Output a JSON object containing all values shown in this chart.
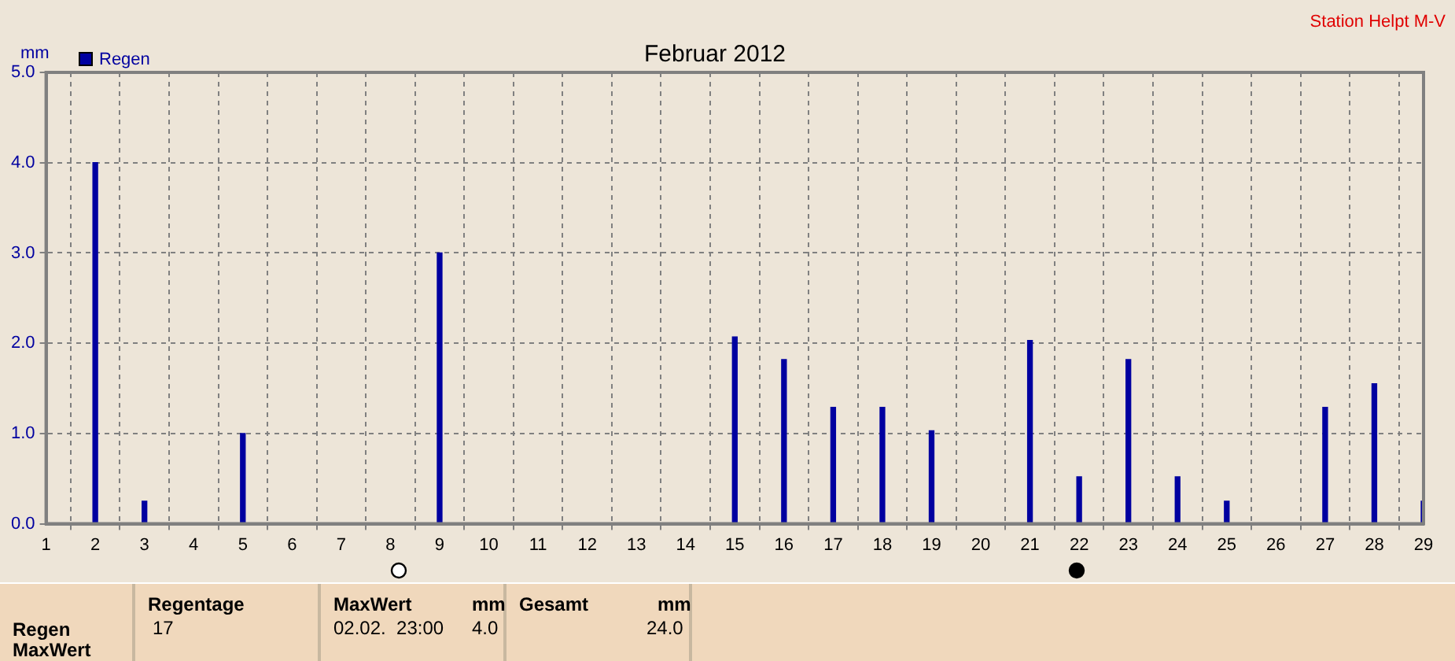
{
  "chart_data": {
    "type": "bar",
    "title": "Februar 2012",
    "subtitle": "Station Helpt M-V",
    "ylabel": "mm",
    "x": [
      2,
      3,
      5,
      9,
      15,
      16,
      17,
      18,
      19,
      21,
      22,
      23,
      24,
      25,
      27,
      28,
      29
    ],
    "series": [
      {
        "name": "Regen",
        "color": "#0000a0",
        "values": [
          4.0,
          0.25,
          1.0,
          3.0,
          2.07,
          1.82,
          1.29,
          1.29,
          1.03,
          2.03,
          0.52,
          1.82,
          0.52,
          0.25,
          1.29,
          1.55,
          0.25
        ]
      }
    ],
    "xlim": [
      1,
      29
    ],
    "xticks": [
      1,
      2,
      3,
      4,
      5,
      6,
      7,
      8,
      9,
      10,
      11,
      12,
      13,
      14,
      15,
      16,
      17,
      18,
      19,
      20,
      21,
      22,
      23,
      24,
      25,
      26,
      27,
      28,
      29
    ],
    "ylim": [
      0,
      5
    ],
    "yticks": [
      {
        "value": 0,
        "label": "0.0"
      },
      {
        "value": 1,
        "label": "1.0"
      },
      {
        "value": 2,
        "label": "2.0"
      },
      {
        "value": 3,
        "label": "3.0"
      },
      {
        "value": 4,
        "label": "4.0"
      },
      {
        "value": 5,
        "label": "5.0"
      }
    ],
    "grid": true,
    "legend": "top left",
    "annotations": [
      "Regen",
      "MaxWert",
      "Regentage",
      "17",
      "MaxWert",
      "mm",
      "02.02.  23:00",
      "4.0",
      "Gesamt",
      "mm",
      "24.0"
    ]
  }
}
